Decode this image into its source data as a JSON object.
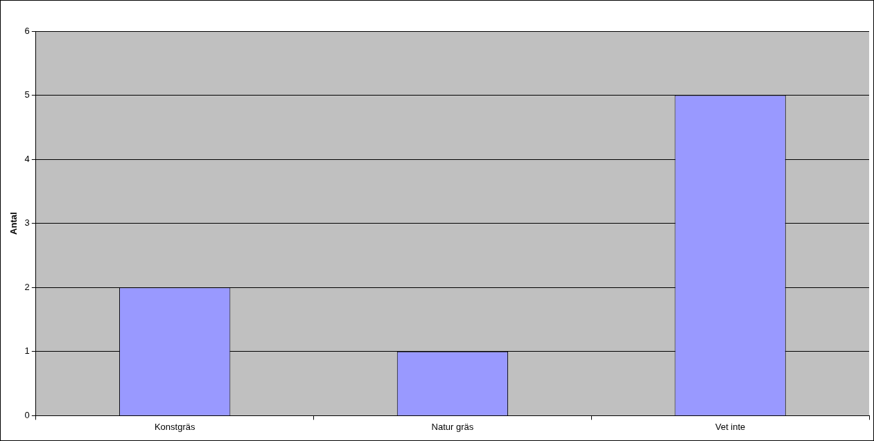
{
  "chart_data": {
    "type": "bar",
    "ylabel": "Antal",
    "categories": [
      "Konstgräs",
      "Natur gräs",
      "Vet inte"
    ],
    "values": [
      2,
      1,
      5
    ],
    "color": "#9999ff",
    "ylim": [
      0,
      6
    ],
    "yticks": [
      0,
      1,
      2,
      3,
      4,
      5,
      6
    ],
    "grid": "y"
  }
}
